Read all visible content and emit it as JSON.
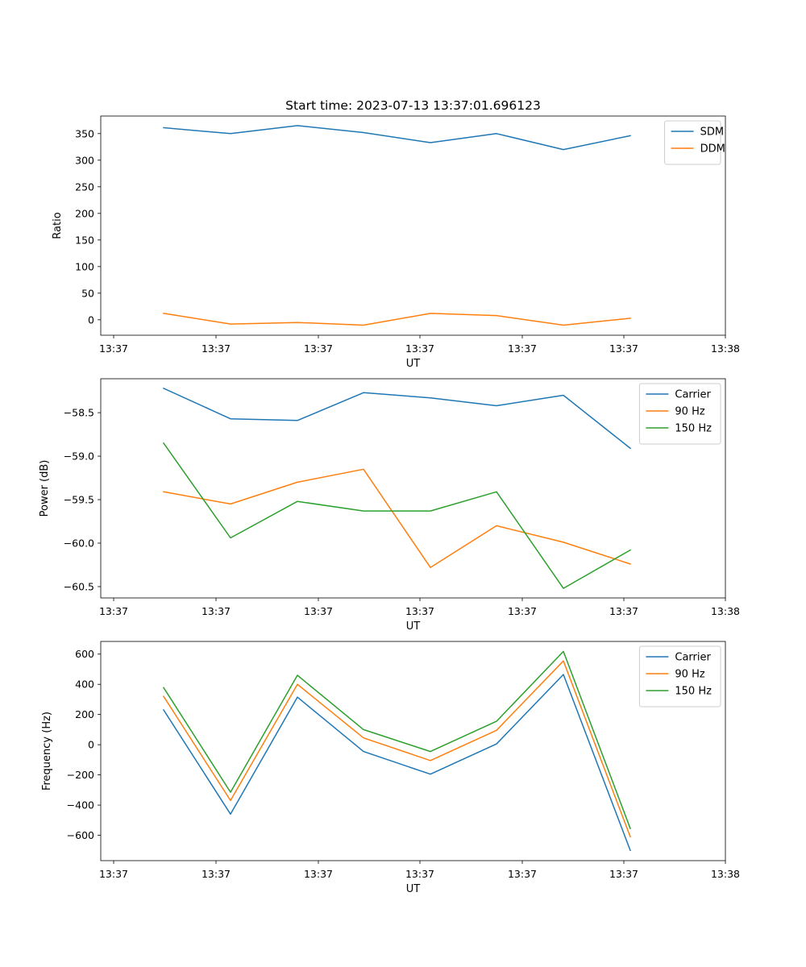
{
  "figure": {
    "title": "Start time: 2023-07-13 13:37:01.696123"
  },
  "chart_data": [
    {
      "type": "line",
      "xlabel": "UT",
      "ylabel": "Ratio",
      "xticks": [
        "13:37",
        "13:37",
        "13:37",
        "13:37",
        "13:37",
        "13:37",
        "13:38"
      ],
      "yticks": [
        0,
        50,
        100,
        150,
        200,
        250,
        300,
        350
      ],
      "ylim": [
        -29,
        383
      ],
      "legend_position": "top-right",
      "series": [
        {
          "name": "SDM",
          "color": "#1f77b4",
          "values": [
            361,
            350,
            365,
            352,
            333,
            350,
            320,
            346
          ]
        },
        {
          "name": "DDM",
          "color": "#ff7f0e",
          "values": [
            12,
            -8,
            -5,
            -10,
            12,
            8,
            -10,
            3
          ]
        }
      ]
    },
    {
      "type": "line",
      "xlabel": "UT",
      "ylabel": "Power (dB)",
      "xticks": [
        "13:37",
        "13:37",
        "13:37",
        "13:37",
        "13:37",
        "13:37",
        "13:38"
      ],
      "yticks": [
        -58.5,
        -59.0,
        -59.5,
        -60.0,
        -60.5
      ],
      "ytick_labels": [
        "−58.5",
        "−59.0",
        "−59.5",
        "−60.0",
        "−60.5"
      ],
      "ylim": [
        -60.63,
        -58.11
      ],
      "legend_position": "top-right",
      "series": [
        {
          "name": "Carrier",
          "color": "#1f77b4",
          "values": [
            -58.22,
            -58.57,
            -58.59,
            -58.27,
            -58.33,
            -58.42,
            -58.3,
            -58.91
          ]
        },
        {
          "name": "90 Hz",
          "color": "#ff7f0e",
          "values": [
            -59.41,
            -59.55,
            -59.3,
            -59.15,
            -60.28,
            -59.8,
            -59.99,
            -60.24
          ]
        },
        {
          "name": "150 Hz",
          "color": "#2ca02c",
          "values": [
            -58.85,
            -59.94,
            -59.52,
            -59.63,
            -59.63,
            -59.41,
            -60.52,
            -60.08
          ]
        }
      ]
    },
    {
      "type": "line",
      "xlabel": "UT",
      "ylabel": "Frequency (Hz)",
      "xticks": [
        "13:37",
        "13:37",
        "13:37",
        "13:37",
        "13:37",
        "13:37",
        "13:38"
      ],
      "yticks": [
        600,
        400,
        200,
        0,
        -200,
        -400,
        -600
      ],
      "ytick_labels": [
        "600",
        "400",
        "200",
        "0",
        "−200",
        "−400",
        "−600"
      ],
      "ylim": [
        -768,
        684
      ],
      "legend_position": "top-right",
      "series": [
        {
          "name": "Carrier",
          "color": "#1f77b4",
          "values": [
            230,
            -460,
            315,
            -45,
            -195,
            5,
            465,
            -700
          ]
        },
        {
          "name": "90 Hz",
          "color": "#ff7f0e",
          "values": [
            320,
            -370,
            400,
            45,
            -105,
            95,
            555,
            -610
          ]
        },
        {
          "name": "150 Hz",
          "color": "#2ca02c",
          "values": [
            378,
            -315,
            460,
            100,
            -45,
            155,
            618,
            -555
          ]
        }
      ]
    }
  ]
}
